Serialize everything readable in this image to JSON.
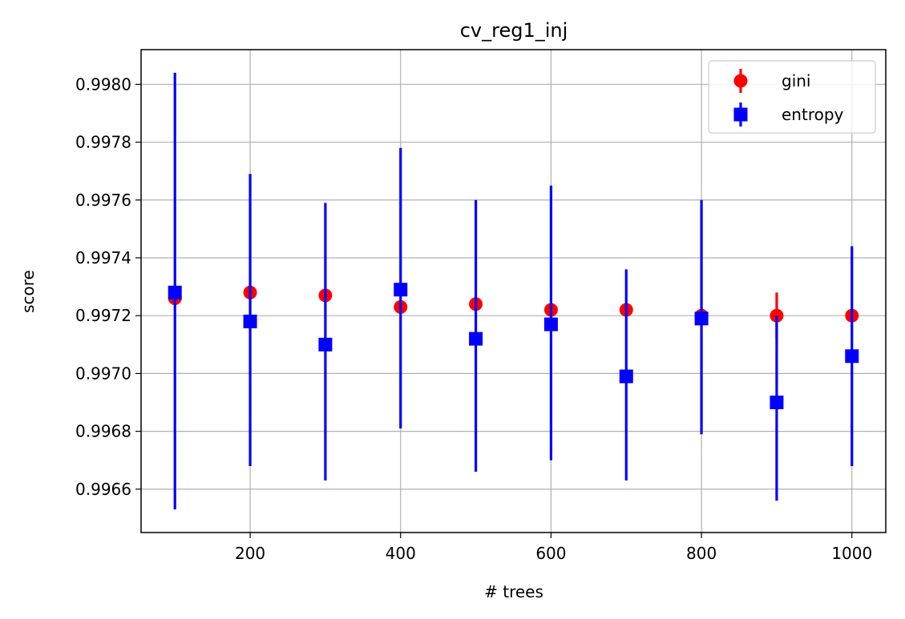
{
  "chart_data": {
    "type": "scatter",
    "title": "cv_reg1_inj",
    "xlabel": "# trees",
    "ylabel": "score",
    "xlim": [
      55,
      1045
    ],
    "ylim": [
      0.99645,
      0.99812
    ],
    "xticks": [
      200,
      400,
      600,
      800,
      1000
    ],
    "xtick_labels": [
      "200",
      "400",
      "600",
      "800",
      "1000"
    ],
    "yticks": [
      0.9966,
      0.9968,
      0.997,
      0.9972,
      0.9974,
      0.9976,
      0.9978,
      0.998
    ],
    "ytick_labels": [
      "0.9966",
      "0.9968",
      "0.9970",
      "0.9972",
      "0.9974",
      "0.9976",
      "0.9978",
      "0.9980"
    ],
    "grid": true,
    "legend_position": "top-right",
    "series": [
      {
        "name": "gini",
        "color": "#ff0000",
        "marker": "circle",
        "x": [
          100,
          200,
          300,
          400,
          500,
          600,
          700,
          800,
          900,
          1000
        ],
        "y": [
          0.99726,
          0.99728,
          0.99727,
          0.99723,
          0.99724,
          0.99722,
          0.99722,
          0.9972,
          0.9972,
          0.9972
        ],
        "err_low": [
          0.99726,
          0.99728,
          0.99727,
          0.99723,
          0.99724,
          0.99722,
          0.99722,
          0.9972,
          0.99712,
          0.9972
        ],
        "err_high": [
          0.99726,
          0.99728,
          0.99727,
          0.99723,
          0.99724,
          0.99722,
          0.99722,
          0.9972,
          0.99728,
          0.9972
        ]
      },
      {
        "name": "entropy",
        "color": "#0000ff",
        "marker": "square",
        "x": [
          100,
          200,
          300,
          400,
          500,
          600,
          700,
          800,
          900,
          1000
        ],
        "y": [
          0.99728,
          0.99718,
          0.9971,
          0.99729,
          0.99712,
          0.99717,
          0.99699,
          0.99719,
          0.9969,
          0.99706
        ],
        "err_low": [
          0.99653,
          0.99668,
          0.99663,
          0.99681,
          0.99666,
          0.9967,
          0.99663,
          0.99679,
          0.99656,
          0.99668
        ],
        "err_high": [
          0.99804,
          0.99769,
          0.99759,
          0.99778,
          0.9976,
          0.99765,
          0.99736,
          0.9976,
          0.9972,
          0.99744
        ]
      }
    ]
  }
}
